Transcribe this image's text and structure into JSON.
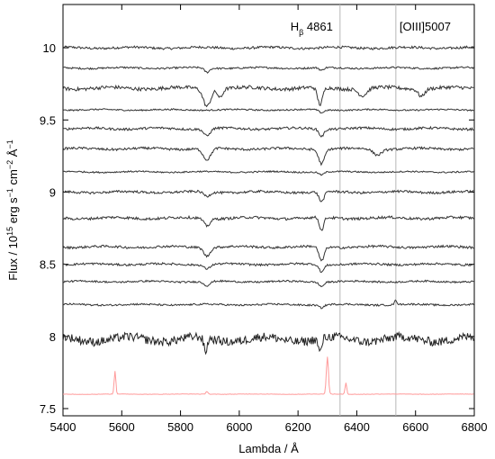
{
  "chart_data": {
    "type": "line",
    "xlabel": "Lambda / Å",
    "ylabel": {
      "parts": [
        "Flux / 10",
        "15",
        " erg s",
        "−1",
        " cm",
        "−2",
        " Å",
        "−1"
      ]
    },
    "xlim": [
      5400,
      6800
    ],
    "ylim": [
      7.45,
      10.3
    ],
    "xticks": [
      "5400",
      "5600",
      "5800",
      "6000",
      "6200",
      "6400",
      "6600",
      "6800"
    ],
    "yticks": [
      "7.5",
      "8",
      "8.5",
      "9",
      "9.5",
      "10"
    ],
    "grid": false,
    "annotations": [
      {
        "text": "H",
        "sub": "β",
        "rest": " 4861",
        "wavelength": 6343
      },
      {
        "text": "[OIII]5007",
        "wavelength": 6533
      }
    ],
    "marker_lines_x": [
      6343,
      6533
    ],
    "series": [
      {
        "offset": 10.0,
        "color": "#333333",
        "noise": 0.008,
        "features": []
      },
      {
        "offset": 9.86,
        "color": "#333333",
        "noise": 0.006,
        "features": [
          [
            5890,
            0.03,
            12
          ],
          [
            6280,
            0.02,
            10
          ]
        ]
      },
      {
        "offset": 9.72,
        "color": "#333333",
        "noise": 0.012,
        "features": [
          [
            5890,
            0.12,
            18
          ],
          [
            5935,
            0.06,
            12
          ],
          [
            6275,
            0.12,
            12
          ],
          [
            6420,
            0.05,
            20
          ],
          [
            6620,
            0.05,
            15
          ]
        ]
      },
      {
        "offset": 9.57,
        "color": "#333333",
        "noise": 0.005,
        "features": [
          [
            6280,
            0.02,
            12
          ]
        ]
      },
      {
        "offset": 9.44,
        "color": "#333333",
        "noise": 0.008,
        "features": [
          [
            5890,
            0.05,
            15
          ],
          [
            6280,
            0.05,
            12
          ]
        ]
      },
      {
        "offset": 9.3,
        "color": "#333333",
        "noise": 0.008,
        "features": [
          [
            5890,
            0.08,
            18
          ],
          [
            6280,
            0.1,
            14
          ],
          [
            6470,
            0.04,
            20
          ]
        ]
      },
      {
        "offset": 9.14,
        "color": "#333333",
        "noise": 0.005,
        "features": [
          [
            6280,
            0.02,
            12
          ]
        ]
      },
      {
        "offset": 9.0,
        "color": "#333333",
        "noise": 0.008,
        "features": [
          [
            5890,
            0.03,
            15
          ],
          [
            6280,
            0.07,
            12
          ]
        ]
      },
      {
        "offset": 8.82,
        "color": "#333333",
        "noise": 0.009,
        "features": [
          [
            5890,
            0.05,
            15
          ],
          [
            6280,
            0.09,
            10
          ]
        ]
      },
      {
        "offset": 8.62,
        "color": "#333333",
        "noise": 0.008,
        "features": [
          [
            5890,
            0.06,
            15
          ],
          [
            6280,
            0.1,
            12
          ]
        ]
      },
      {
        "offset": 8.5,
        "color": "#333333",
        "noise": 0.007,
        "features": [
          [
            5890,
            0.03,
            15
          ],
          [
            6280,
            0.05,
            12
          ]
        ]
      },
      {
        "offset": 8.38,
        "color": "#333333",
        "noise": 0.006,
        "features": [
          [
            5890,
            0.03,
            15
          ],
          [
            6280,
            0.03,
            12
          ]
        ]
      },
      {
        "offset": 8.22,
        "color": "#333333",
        "noise": 0.006,
        "features": [
          [
            6280,
            0.02,
            12
          ],
          [
            6533,
            -0.03,
            6
          ]
        ]
      },
      {
        "offset": 7.98,
        "color": "#222222",
        "noise": 0.03,
        "features": [
          [
            5885,
            0.1,
            8
          ],
          [
            6275,
            0.1,
            8
          ]
        ]
      },
      {
        "offset": 7.6,
        "color": "#ff9a9a",
        "noise": 0.0015,
        "features": [
          [
            5577,
            -0.16,
            4
          ],
          [
            5890,
            -0.02,
            5
          ],
          [
            6300,
            -0.26,
            5
          ],
          [
            6363,
            -0.08,
            4
          ]
        ]
      }
    ]
  }
}
